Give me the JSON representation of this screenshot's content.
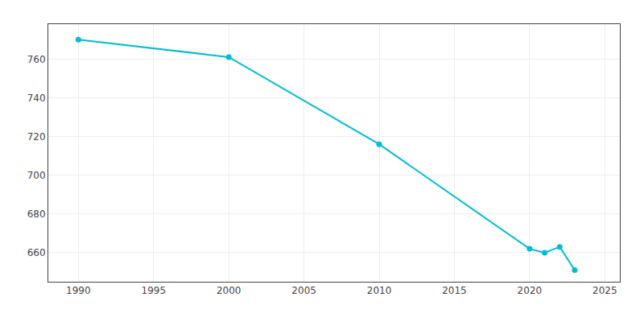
{
  "chart_data": {
    "type": "line",
    "x": [
      1990,
      2000,
      2010,
      2020,
      2021,
      2022,
      2023
    ],
    "values": [
      770,
      761,
      716,
      662,
      660,
      663,
      651
    ],
    "color": "#00BCD4",
    "marker": "circle",
    "xlim": [
      1988,
      2026
    ],
    "ylim": [
      645,
      778
    ],
    "xticks": [
      1990,
      1995,
      2000,
      2005,
      2010,
      2015,
      2020,
      2025
    ],
    "yticks": [
      660,
      680,
      700,
      720,
      740,
      760
    ],
    "grid": true
  }
}
